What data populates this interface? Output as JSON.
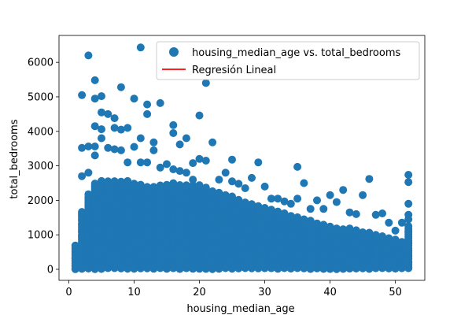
{
  "chart_data": {
    "type": "scatter",
    "xlabel": "housing_median_age",
    "ylabel": "total_bedrooms",
    "xlim": [
      -1.5,
      54.5
    ],
    "ylim": [
      -320,
      6780
    ],
    "xticks": [
      0,
      10,
      20,
      30,
      40,
      50
    ],
    "yticks": [
      0,
      1000,
      2000,
      3000,
      4000,
      5000,
      6000
    ],
    "grid": false,
    "legend_position": "upper right",
    "marker_color": "#1f77b4",
    "regression_color": "#ff0000",
    "series": [
      {
        "name": "housing_median_age vs. total_bedrooms",
        "kind": "scatter",
        "x": [
          1,
          1,
          2,
          2,
          2,
          3,
          3,
          3,
          4,
          4,
          4,
          4,
          4,
          5,
          5,
          5,
          5,
          6,
          6,
          7,
          7,
          7,
          8,
          8,
          8,
          9,
          9,
          10,
          10,
          11,
          11,
          11,
          12,
          12,
          12,
          13,
          13,
          14,
          14,
          15,
          16,
          16,
          16,
          17,
          17,
          18,
          18,
          19,
          19,
          20,
          20,
          21,
          21,
          22,
          23,
          24,
          25,
          25,
          26,
          27,
          28,
          29,
          30,
          31,
          32,
          33,
          34,
          35,
          35,
          36,
          37,
          38,
          39,
          40,
          41,
          42,
          43,
          44,
          45,
          46,
          47,
          48,
          49,
          50,
          51,
          52,
          52,
          52,
          52,
          52,
          52
        ],
        "y": [
          320,
          20,
          5050,
          3520,
          2700,
          6200,
          3560,
          2800,
          5480,
          4950,
          4150,
          3560,
          3300,
          5020,
          4550,
          4060,
          3800,
          4500,
          3520,
          4380,
          4100,
          3480,
          5280,
          4050,
          3450,
          4100,
          3100,
          4950,
          3550,
          6430,
          3800,
          3100,
          4780,
          4500,
          3100,
          3680,
          3450,
          4820,
          2950,
          3050,
          4180,
          3950,
          2900,
          3620,
          2850,
          3800,
          2800,
          3080,
          2600,
          4460,
          3200,
          5400,
          3150,
          3680,
          2600,
          2800,
          3180,
          2550,
          2480,
          2350,
          2650,
          3100,
          2400,
          2050,
          2050,
          1970,
          1900,
          2970,
          2050,
          2500,
          1750,
          2000,
          1750,
          2150,
          1950,
          2300,
          1650,
          1600,
          2150,
          2620,
          1580,
          1620,
          1350,
          1120,
          1350,
          2740,
          2530,
          1900,
          1580,
          1450,
          1250
        ]
      },
      {
        "name": "Regresión Lineal",
        "kind": "line",
        "x": [],
        "y": []
      }
    ],
    "dense_band": [
      {
        "x": 1,
        "lo": 0,
        "hi": 700
      },
      {
        "x": 2,
        "lo": 0,
        "hi": 1700
      },
      {
        "x": 3,
        "lo": 0,
        "hi": 2200
      },
      {
        "x": 4,
        "lo": 0,
        "hi": 2500
      },
      {
        "x": 5,
        "lo": 0,
        "hi": 2600
      },
      {
        "x": 8,
        "lo": 0,
        "hi": 2600
      },
      {
        "x": 12,
        "lo": 0,
        "hi": 2400
      },
      {
        "x": 16,
        "lo": 0,
        "hi": 2500
      },
      {
        "x": 20,
        "lo": 0,
        "hi": 2450
      },
      {
        "x": 24,
        "lo": 0,
        "hi": 2200
      },
      {
        "x": 28,
        "lo": 0,
        "hi": 1900
      },
      {
        "x": 32,
        "lo": 0,
        "hi": 1700
      },
      {
        "x": 36,
        "lo": 0,
        "hi": 1500
      },
      {
        "x": 40,
        "lo": 0,
        "hi": 1250
      },
      {
        "x": 44,
        "lo": 0,
        "hi": 1150
      },
      {
        "x": 48,
        "lo": 0,
        "hi": 1000
      },
      {
        "x": 51,
        "lo": 0,
        "hi": 800
      },
      {
        "x": 52,
        "lo": 0,
        "hi": 1200
      }
    ]
  }
}
